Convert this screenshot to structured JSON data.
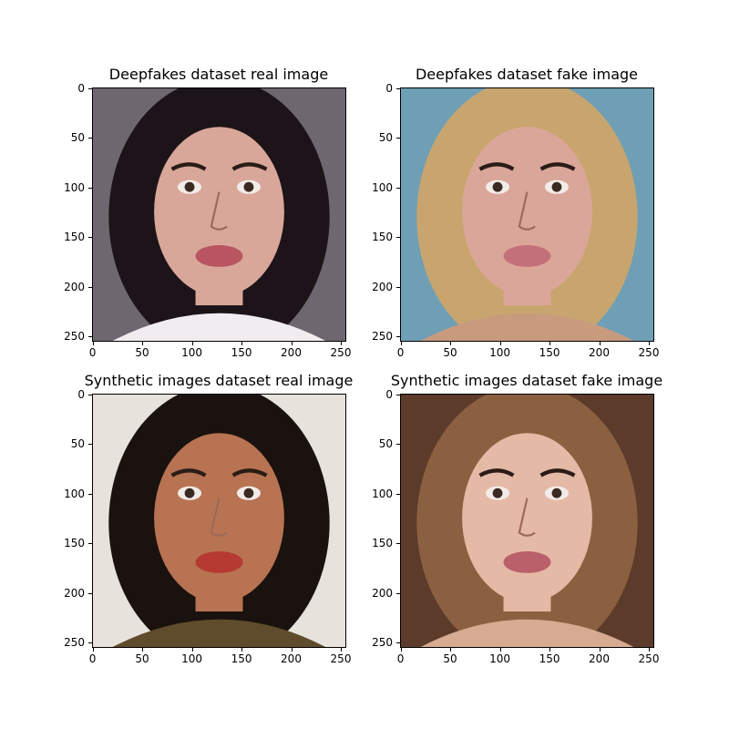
{
  "panels": [
    {
      "title": "Deepfakes dataset real image",
      "face": "real-face-1",
      "palette": {
        "bg": "#6f6770",
        "hair": "#1c1418",
        "skin": "#d9a79a",
        "shirt": "#f0ecef",
        "mouth": "#b85560"
      }
    },
    {
      "title": "Deepfakes dataset fake image",
      "face": "fake-face-1",
      "palette": {
        "bg": "#6f9fb5",
        "hair": "#c8a56e",
        "skin": "#dba69a",
        "shirt": "#c89a7e",
        "mouth": "#c4707a"
      }
    },
    {
      "title": "Synthetic images dataset real image",
      "face": "real-face-2",
      "palette": {
        "bg": "#e7e3dc",
        "hair": "#1a120e",
        "skin": "#b87352",
        "shirt": "#5f4c2c",
        "mouth": "#b63a32"
      }
    },
    {
      "title": "Synthetic images dataset fake image",
      "face": "fake-face-2",
      "palette": {
        "bg": "#5c3b2a",
        "hair": "#8b6040",
        "skin": "#e4b9a6",
        "shirt": "#d7ab92",
        "mouth": "#b9606a"
      }
    }
  ],
  "y_ticks": [
    "0",
    "50",
    "100",
    "150",
    "200",
    "250"
  ],
  "x_ticks": [
    "0",
    "50",
    "100",
    "150",
    "200",
    "250"
  ]
}
